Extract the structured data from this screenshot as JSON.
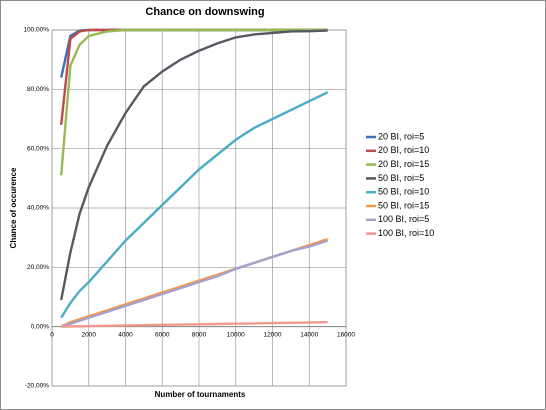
{
  "chart_data": {
    "type": "line",
    "title": "Chance on downswing",
    "x_label": "Number of tournaments",
    "y_label": "Chance of occurence",
    "x": [
      500,
      1000,
      1500,
      2000,
      3000,
      4000,
      5000,
      6000,
      7000,
      8000,
      9000,
      10000,
      11000,
      12000,
      13000,
      14000,
      15000
    ],
    "series": [
      {
        "name": "20 BI, roi=5",
        "color": "#3e6db5",
        "values": [
          84,
          98,
          99.8,
          100,
          100,
          100,
          100,
          100,
          100,
          100,
          100,
          100,
          100,
          100,
          100,
          100,
          100
        ]
      },
      {
        "name": "20 BI, roi=10",
        "color": "#be4b48",
        "values": [
          68,
          97,
          99.5,
          100,
          100,
          100,
          100,
          100,
          100,
          100,
          100,
          100,
          100,
          100,
          100,
          100,
          100
        ]
      },
      {
        "name": "20 BI, roi=15",
        "color": "#98b954",
        "values": [
          51,
          88,
          95,
          98,
          99.5,
          100,
          100,
          100,
          100,
          100,
          100,
          100,
          100,
          100,
          100,
          100,
          100
        ]
      },
      {
        "name": "50 BI, roi=5",
        "color": "#555a62",
        "values": [
          9,
          25,
          38,
          47,
          61,
          72,
          81,
          86,
          90,
          93,
          95.5,
          97.5,
          98.5,
          99,
          99.5,
          99.6,
          99.8
        ]
      },
      {
        "name": "50 BI, roi=10",
        "color": "#4bacc6",
        "values": [
          3,
          8,
          12,
          15,
          22,
          29,
          35,
          41,
          47,
          53,
          58,
          63,
          67,
          70,
          73,
          76,
          79
        ]
      },
      {
        "name": "50 BI, roi=15",
        "color": "#f79646",
        "values": [
          0,
          1.5,
          2.5,
          3.5,
          5.5,
          7.5,
          9.5,
          11.5,
          13.5,
          15.5,
          17.5,
          19.5,
          21.5,
          23.5,
          25.5,
          27.5,
          29.5
        ]
      },
      {
        "name": "100 BI, roi=5",
        "color": "#a5a0cc",
        "values": [
          0,
          1,
          2,
          3,
          5,
          7,
          9,
          11,
          13,
          15,
          17,
          19.5,
          21.5,
          23.5,
          25.5,
          27,
          29
        ]
      },
      {
        "name": "100 BI, roi=10",
        "color": "#f0998c",
        "values": [
          0,
          0.1,
          0.1,
          0.2,
          0.3,
          0.4,
          0.5,
          0.6,
          0.7,
          0.8,
          0.9,
          1,
          1.1,
          1.2,
          1.3,
          1.4,
          1.5
        ]
      }
    ],
    "xlim": [
      0,
      16000
    ],
    "xticks": [
      0,
      2000,
      4000,
      6000,
      8000,
      10000,
      12000,
      14000,
      16000
    ],
    "ylim": [
      -20,
      100
    ],
    "yticks": [
      {
        "value": -20,
        "label": "-20,00%"
      },
      {
        "value": 0,
        "label": "0,00%"
      },
      {
        "value": 20,
        "label": "20,00%"
      },
      {
        "value": 40,
        "label": "40,00%"
      },
      {
        "value": 60,
        "label": "60,00%"
      },
      {
        "value": 80,
        "label": "80,00%"
      },
      {
        "value": 100,
        "label": "100,00%"
      }
    ],
    "grid": true,
    "legend": "right"
  }
}
